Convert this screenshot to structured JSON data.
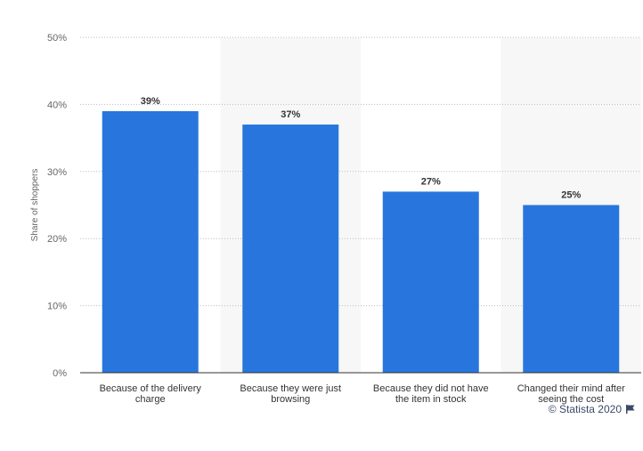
{
  "chart_data": {
    "type": "bar",
    "categories": [
      [
        "Because of the delivery",
        "charge"
      ],
      [
        "Because they were just",
        "browsing"
      ],
      [
        "Because they did not have",
        "the item in stock"
      ],
      [
        "Changed their mind after",
        "seeing the cost"
      ]
    ],
    "values": [
      39,
      37,
      27,
      25
    ],
    "value_labels": [
      "39%",
      "37%",
      "27%",
      "25%"
    ],
    "ylabel": "Share of shoppers",
    "ylim": [
      0,
      50
    ],
    "yticks": [
      0,
      10,
      20,
      30,
      40,
      50
    ],
    "ytick_labels": [
      "0%",
      "10%",
      "20%",
      "30%",
      "40%",
      "50%"
    ],
    "grid": true,
    "bar_color": "#2876dd",
    "alt_band_color": "#f7f7f7"
  },
  "footer": {
    "credit": "© Statista 2020"
  }
}
